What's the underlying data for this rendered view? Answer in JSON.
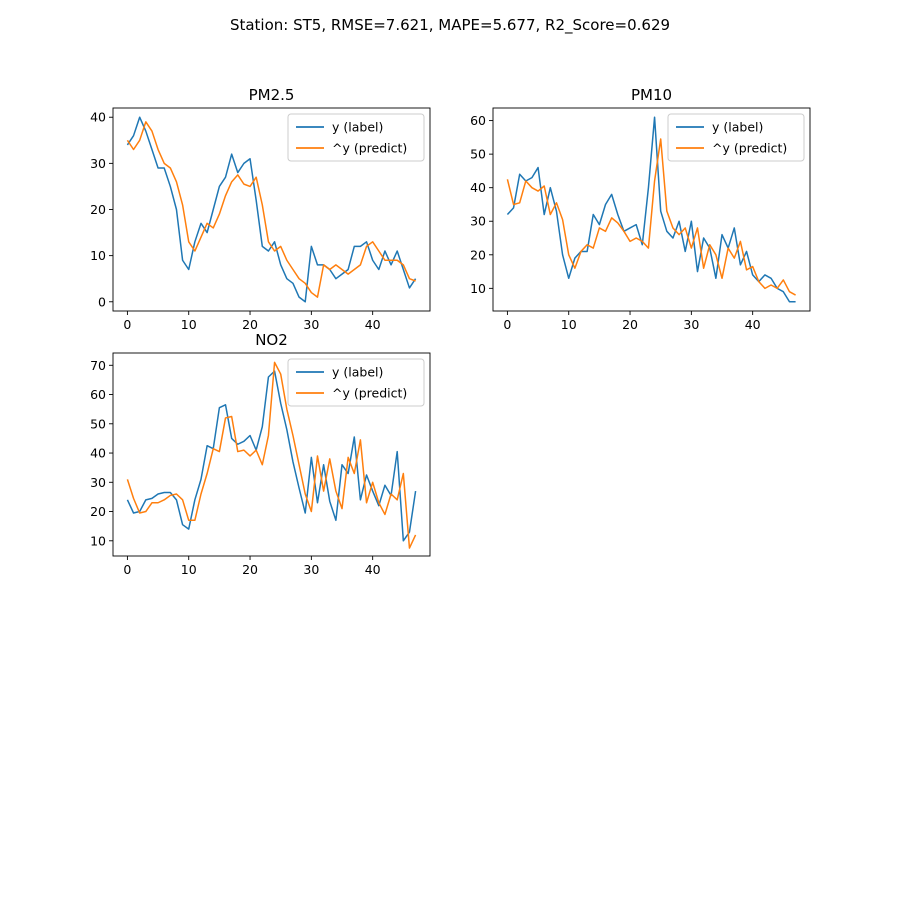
{
  "figure": {
    "suptitle": "Station: ST5, RMSE=7.621, MAPE=5.677, R2_Score=0.629"
  },
  "colors": {
    "label": "#1f77b4",
    "predict": "#ff7f0e",
    "axes": "#000000",
    "legend_border": "#cccccc"
  },
  "chart_data": [
    {
      "type": "line",
      "title": "PM2.5",
      "xlabel": "",
      "ylabel": "",
      "xlim": [
        -2.35,
        49.35
      ],
      "ylim": [
        -2.0,
        42.0
      ],
      "xticks": [
        0,
        10,
        20,
        30,
        40
      ],
      "yticks": [
        0,
        10,
        20,
        30,
        40
      ],
      "grid": false,
      "legend": "top-right",
      "x": [
        0,
        1,
        2,
        3,
        4,
        5,
        6,
        7,
        8,
        9,
        10,
        11,
        12,
        13,
        14,
        15,
        16,
        17,
        18,
        19,
        20,
        21,
        22,
        23,
        24,
        25,
        26,
        27,
        28,
        29,
        30,
        31,
        32,
        33,
        34,
        35,
        36,
        37,
        38,
        39,
        40,
        41,
        42,
        43,
        44,
        45,
        46,
        47
      ],
      "series": [
        {
          "name": "y (label)",
          "color": "#1f77b4",
          "values": [
            34,
            36,
            40,
            37,
            33,
            29,
            29,
            25,
            20,
            9,
            7,
            13,
            17,
            15,
            20,
            25,
            27,
            32,
            28,
            30,
            31,
            22,
            12,
            11,
            13,
            8,
            5,
            4,
            1,
            0,
            12,
            8,
            8,
            7,
            5,
            6,
            7,
            12,
            12,
            13,
            9,
            7,
            11,
            8,
            11,
            7,
            3,
            5
          ]
        },
        {
          "name": "^y (predict)",
          "color": "#ff7f0e",
          "values": [
            35,
            33,
            35,
            39,
            37,
            33,
            30,
            29,
            26,
            21,
            13,
            11,
            14,
            17,
            16,
            19,
            23,
            26,
            27.5,
            25.5,
            25,
            27,
            21,
            13,
            11,
            12,
            9,
            7,
            5,
            4,
            2,
            1,
            8,
            7,
            8,
            7,
            6,
            7,
            8,
            12,
            13,
            11,
            9,
            9,
            9,
            8,
            5,
            4.5
          ]
        }
      ]
    },
    {
      "type": "line",
      "title": "PM10",
      "xlabel": "",
      "ylabel": "",
      "xlim": [
        -2.35,
        49.35
      ],
      "ylim": [
        3.25,
        63.75
      ],
      "xticks": [
        0,
        10,
        20,
        30,
        40
      ],
      "yticks": [
        10,
        20,
        30,
        40,
        50,
        60
      ],
      "grid": false,
      "legend": "top-right",
      "x": [
        0,
        1,
        2,
        3,
        4,
        5,
        6,
        7,
        8,
        9,
        10,
        11,
        12,
        13,
        14,
        15,
        16,
        17,
        18,
        19,
        20,
        21,
        22,
        23,
        24,
        25,
        26,
        27,
        28,
        29,
        30,
        31,
        32,
        33,
        34,
        35,
        36,
        37,
        38,
        39,
        40,
        41,
        42,
        43,
        44,
        45,
        46,
        47
      ],
      "series": [
        {
          "name": "y (label)",
          "color": "#1f77b4",
          "values": [
            32,
            34,
            44,
            42,
            43,
            46,
            32,
            40,
            33,
            20,
            13,
            19,
            21,
            21,
            32,
            29,
            35,
            38,
            32,
            27,
            28,
            29,
            23,
            40,
            61,
            33,
            27,
            25,
            30,
            21,
            30,
            15,
            25,
            22,
            13,
            26,
            22,
            28,
            17,
            21,
            14,
            12,
            14,
            13,
            10,
            9,
            6,
            6
          ]
        },
        {
          "name": "^y (predict)",
          "color": "#ff7f0e",
          "values": [
            42.5,
            35,
            35.5,
            42,
            40,
            39,
            40.5,
            32,
            35.5,
            30.5,
            20,
            16,
            21,
            23,
            22,
            28,
            27,
            31,
            29.5,
            27,
            24,
            25,
            24,
            22,
            42,
            54.5,
            33,
            28,
            26,
            28,
            22,
            28,
            16,
            23,
            20,
            13,
            22,
            19,
            24,
            15.5,
            16.5,
            12,
            10,
            11,
            10,
            12.5,
            9,
            8
          ]
        }
      ]
    },
    {
      "type": "line",
      "title": "NO2",
      "xlabel": "",
      "ylabel": "",
      "xlim": [
        -2.35,
        49.35
      ],
      "ylim": [
        4.8,
        74.2
      ],
      "xticks": [
        0,
        10,
        20,
        30,
        40
      ],
      "yticks": [
        10,
        20,
        30,
        40,
        50,
        60,
        70
      ],
      "grid": false,
      "legend": "top-right",
      "x": [
        0,
        1,
        2,
        3,
        4,
        5,
        6,
        7,
        8,
        9,
        10,
        11,
        12,
        13,
        14,
        15,
        16,
        17,
        18,
        19,
        20,
        21,
        22,
        23,
        24,
        25,
        26,
        27,
        28,
        29,
        30,
        31,
        32,
        33,
        34,
        35,
        36,
        37,
        38,
        39,
        40,
        41,
        42,
        43,
        44,
        45,
        46,
        47
      ],
      "series": [
        {
          "name": "y (label)",
          "color": "#1f77b4",
          "values": [
            24,
            19.5,
            20,
            24,
            24.5,
            26,
            26.5,
            26.5,
            24,
            15.5,
            14,
            24,
            31,
            42.5,
            41.5,
            55.5,
            56.5,
            45,
            43,
            44,
            46,
            41,
            49,
            66,
            68,
            57,
            48,
            37,
            28,
            19.5,
            38.5,
            23,
            36,
            23.5,
            17,
            36,
            33,
            45.5,
            24,
            32.5,
            27,
            22,
            29,
            25.5,
            40.5,
            10,
            13,
            27
          ]
        },
        {
          "name": "^y (predict)",
          "color": "#ff7f0e",
          "values": [
            31,
            24.5,
            19.5,
            20,
            23,
            23,
            24,
            25.5,
            26,
            24,
            17,
            17,
            26,
            33,
            41.5,
            40.5,
            52,
            52.5,
            40.5,
            41,
            39,
            41,
            36,
            46,
            71,
            67,
            55,
            46,
            36,
            26,
            20,
            39,
            27,
            38,
            27,
            21,
            38.5,
            33,
            44.5,
            23,
            30,
            23,
            19,
            26,
            24,
            33,
            7.5,
            12
          ]
        }
      ]
    }
  ]
}
